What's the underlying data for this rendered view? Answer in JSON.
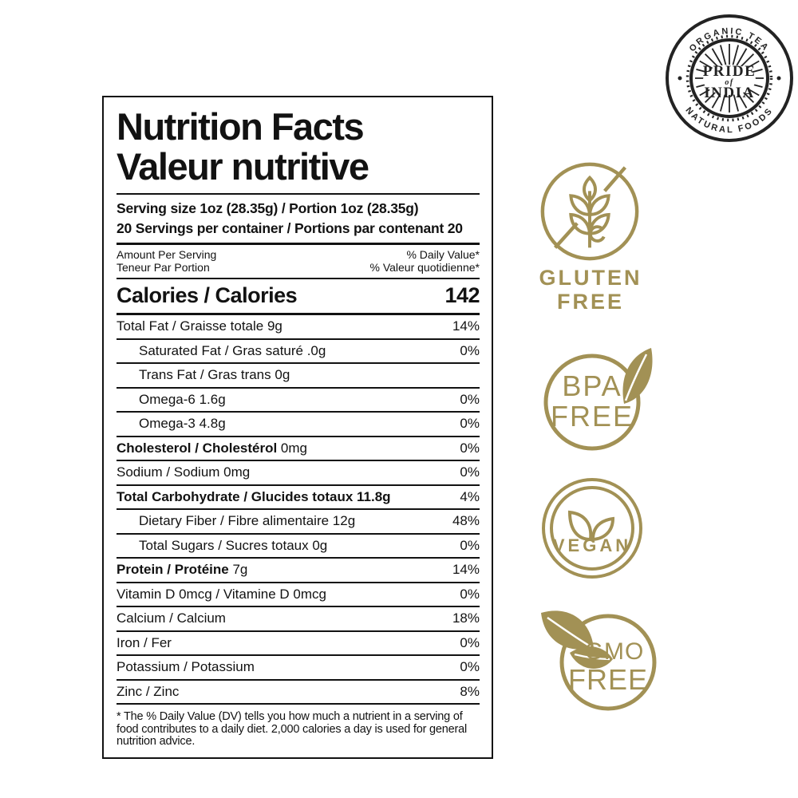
{
  "colors": {
    "badge_gold": "#a29155",
    "ink": "#121212"
  },
  "label": {
    "title_line1": "Nutrition Facts",
    "title_line2": "Valeur nutritive",
    "serving_size": "Serving size 1oz (28.35g) / Portion 1oz (28.35g)",
    "servings_per_container": "20 Servings per container / Portions par contenant 20",
    "amount_per_serving_en": "Amount Per Serving",
    "amount_per_serving_fr": "Teneur Par Portion",
    "daily_value_en": "% Daily Value*",
    "daily_value_fr": "% Valeur quotidienne*",
    "calories_label": "Calories / Calories",
    "calories_value": "142",
    "rows": [
      {
        "name": "Total Fat / Graisse totale",
        "amount": "9g",
        "dv": "14%",
        "bold": false,
        "amount_bold": false,
        "indent": 0
      },
      {
        "name": "Saturated Fat / Gras saturé",
        "amount": ".0g",
        "dv": "0%",
        "bold": false,
        "amount_bold": false,
        "indent": 1
      },
      {
        "name": "Trans Fat / Gras trans",
        "amount": "0g",
        "dv": "",
        "bold": false,
        "amount_bold": false,
        "indent": 1
      },
      {
        "name": "Omega-6",
        "amount": "1.6g",
        "dv": "0%",
        "bold": false,
        "amount_bold": false,
        "indent": 1
      },
      {
        "name": "Omega-3",
        "amount": "4.8g",
        "dv": "0%",
        "bold": false,
        "amount_bold": false,
        "indent": 1
      },
      {
        "name": "Cholesterol / Cholestérol",
        "amount": "0mg",
        "dv": "0%",
        "bold": true,
        "amount_bold": false,
        "indent": 0
      },
      {
        "name": "Sodium / Sodium",
        "amount": "0mg",
        "dv": "0%",
        "bold": false,
        "amount_bold": false,
        "indent": 0
      },
      {
        "name": "Total Carbohydrate / Glucides totaux",
        "amount": "11.8g",
        "dv": "4%",
        "bold": true,
        "amount_bold": true,
        "indent": 0
      },
      {
        "name": "Dietary Fiber / Fibre alimentaire",
        "amount": "12g",
        "dv": "48%",
        "bold": false,
        "amount_bold": false,
        "indent": 1
      },
      {
        "name": "Total Sugars / Sucres totaux",
        "amount": "0g",
        "dv": "0%",
        "bold": false,
        "amount_bold": false,
        "indent": 1
      },
      {
        "name": "Protein / Protéine",
        "amount": "7g",
        "dv": "14%",
        "bold": true,
        "amount_bold": false,
        "indent": 0
      },
      {
        "name": "Vitamin D 0mcg / Vitamine D 0mcg",
        "amount": "",
        "dv": "0%",
        "bold": false,
        "amount_bold": false,
        "indent": 0
      },
      {
        "name": "Calcium / Calcium",
        "amount": "",
        "dv": "18%",
        "bold": false,
        "amount_bold": false,
        "indent": 0
      },
      {
        "name": "Iron / Fer",
        "amount": "",
        "dv": "0%",
        "bold": false,
        "amount_bold": false,
        "indent": 0
      },
      {
        "name": "Potassium / Potassium",
        "amount": "",
        "dv": "0%",
        "bold": false,
        "amount_bold": false,
        "indent": 0
      },
      {
        "name": "Zinc / Zinc",
        "amount": "",
        "dv": "8%",
        "bold": false,
        "amount_bold": false,
        "indent": 0
      }
    ],
    "footnote": "* The % Daily Value (DV) tells you how much a nutrient in a serving of food contributes to a daily diet. 2,000 calories a day is used for general nutrition advice."
  },
  "badges": {
    "gluten": {
      "line1": "GLUTEN",
      "line2": "FREE"
    },
    "bpa": {
      "line1": "BPA",
      "line2": "FREE"
    },
    "vegan": {
      "label": "VEGAN"
    },
    "gmo": {
      "line1": "GMO",
      "line2": "FREE"
    }
  },
  "logo": {
    "ring_top": "ORGANIC TEA",
    "ring_bottom": "NATURAL FOODS",
    "center_line1": "PRIDE",
    "center_line2": "of",
    "center_line3": "INDIA"
  }
}
